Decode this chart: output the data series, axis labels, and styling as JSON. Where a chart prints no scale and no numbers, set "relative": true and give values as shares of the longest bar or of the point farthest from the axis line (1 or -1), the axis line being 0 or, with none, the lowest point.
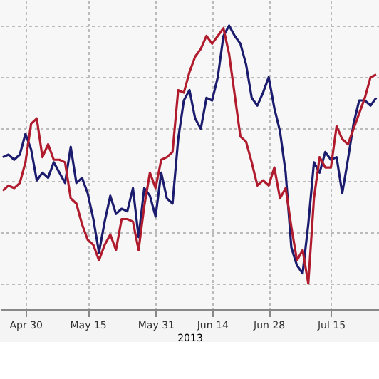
{
  "chart_data": {
    "type": "line",
    "relative": true,
    "grid": true,
    "legend": false,
    "xlabel": "2013",
    "line_style": "solid",
    "marker": "none",
    "categories": [
      null,
      null,
      null,
      null,
      "Apr 30",
      null,
      null,
      null,
      null,
      null,
      null,
      null,
      null,
      null,
      null,
      "May 15",
      null,
      null,
      null,
      null,
      null,
      null,
      null,
      null,
      null,
      null,
      null,
      "May 31",
      null,
      null,
      null,
      null,
      null,
      null,
      null,
      null,
      null,
      "Jun 14",
      null,
      null,
      null,
      null,
      null,
      null,
      null,
      null,
      null,
      "Jun 28",
      null,
      null,
      null,
      null,
      null,
      null,
      null,
      null,
      null,
      null,
      "Jul 15",
      null,
      null,
      null,
      null,
      null,
      null,
      null,
      null
    ],
    "series": [
      {
        "color": "#1c1c6e",
        "values": [
          0.49,
          0.5,
          0.48,
          0.5,
          0.58,
          0.52,
          0.4,
          0.43,
          0.41,
          0.47,
          0.43,
          0.39,
          0.53,
          0.39,
          0.41,
          0.35,
          0.25,
          0.12,
          0.24,
          0.34,
          0.27,
          0.29,
          0.28,
          0.37,
          0.18,
          0.37,
          0.34,
          0.26,
          0.43,
          0.33,
          0.31,
          0.56,
          0.71,
          0.75,
          0.64,
          0.6,
          0.72,
          0.71,
          0.8,
          0.96,
          1.0,
          0.96,
          0.93,
          0.85,
          0.72,
          0.69,
          0.74,
          0.8,
          0.68,
          0.59,
          0.43,
          0.14,
          0.07,
          0.04,
          0.23,
          0.47,
          0.43,
          0.51,
          0.48,
          0.49,
          0.35,
          0.48,
          0.62,
          0.71,
          0.71,
          0.69,
          0.72
        ]
      },
      {
        "color": "#b01c2e",
        "values": [
          0.36,
          0.38,
          0.37,
          0.39,
          0.47,
          0.62,
          0.64,
          0.49,
          0.54,
          0.48,
          0.48,
          0.47,
          0.33,
          0.31,
          0.23,
          0.17,
          0.15,
          0.09,
          0.15,
          0.19,
          0.13,
          0.25,
          0.25,
          0.24,
          0.13,
          0.3,
          0.43,
          0.37,
          0.48,
          0.49,
          0.51,
          0.75,
          0.74,
          0.82,
          0.88,
          0.91,
          0.96,
          0.93,
          0.96,
          0.99,
          0.89,
          0.73,
          0.57,
          0.55,
          0.47,
          0.38,
          0.4,
          0.38,
          0.45,
          0.33,
          0.37,
          0.22,
          0.09,
          0.13,
          0.0,
          0.33,
          0.49,
          0.45,
          0.45,
          0.61,
          0.56,
          0.54,
          0.6,
          0.66,
          0.72,
          0.8,
          0.81
        ]
      }
    ]
  }
}
